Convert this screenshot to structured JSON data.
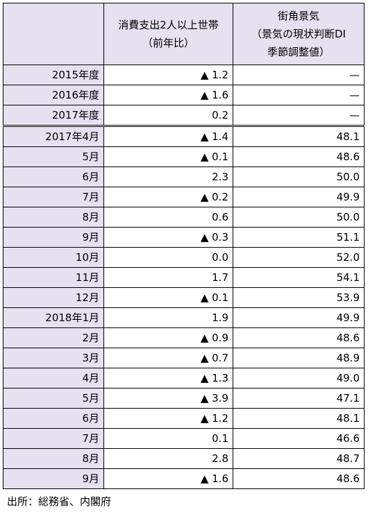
{
  "header": {
    "corner": "",
    "col1_lines": [
      "消費支出2人以上世帯",
      "（前年比）"
    ],
    "col2_lines": [
      "街角景気",
      "（景気の現状判断DI",
      "季節調整値）"
    ]
  },
  "rows": [
    {
      "label": "2015年度",
      "consumption": "▲ 1.2",
      "di": "—"
    },
    {
      "label": "2016年度",
      "consumption": "▲ 1.6",
      "di": "—"
    },
    {
      "label": "2017年度",
      "consumption": "0.2",
      "di": "—"
    },
    {
      "label": "2017年4月",
      "consumption": "▲ 1.4",
      "di": "48.1"
    },
    {
      "label": "5月",
      "consumption": "▲ 0.1",
      "di": "48.6"
    },
    {
      "label": "6月",
      "consumption": "2.3",
      "di": "50.0"
    },
    {
      "label": "7月",
      "consumption": "▲ 0.2",
      "di": "49.9"
    },
    {
      "label": "8月",
      "consumption": "0.6",
      "di": "50.0"
    },
    {
      "label": "9月",
      "consumption": "▲ 0.3",
      "di": "51.1"
    },
    {
      "label": "10月",
      "consumption": "0.0",
      "di": "52.0"
    },
    {
      "label": "11月",
      "consumption": "1.7",
      "di": "54.1"
    },
    {
      "label": "12月",
      "consumption": "▲ 0.1",
      "di": "53.9"
    },
    {
      "label": "2018年1月",
      "consumption": "1.9",
      "di": "49.9"
    },
    {
      "label": "2月",
      "consumption": "▲ 0.9",
      "di": "48.6"
    },
    {
      "label": "3月",
      "consumption": "▲ 0.7",
      "di": "48.9"
    },
    {
      "label": "4月",
      "consumption": "▲ 1.3",
      "di": "49.0"
    },
    {
      "label": "5月",
      "consumption": "▲ 3.9",
      "di": "47.1"
    },
    {
      "label": "6月",
      "consumption": "▲ 1.2",
      "di": "48.1"
    },
    {
      "label": "7月",
      "consumption": "0.1",
      "di": "46.6"
    },
    {
      "label": "8月",
      "consumption": "2.8",
      "di": "48.7"
    },
    {
      "label": "9月",
      "consumption": "▲ 1.6",
      "di": "48.6"
    }
  ],
  "source": "出所：総務省、内閣府"
}
